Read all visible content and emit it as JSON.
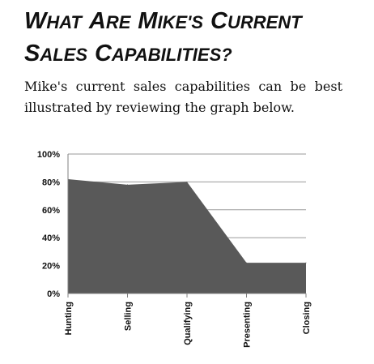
{
  "heading": {
    "line1": "What Are Mike's Current",
    "line2": "Sales Capabilities?"
  },
  "intro": "Mike's current sales capabilities can be best illustrated by reviewing the graph below.",
  "chart_data": {
    "type": "area",
    "categories": [
      "Hunting",
      "Selling",
      "Qualifying",
      "Presenting",
      "Closing"
    ],
    "values": [
      82,
      78,
      80,
      22,
      22
    ],
    "y_ticks": [
      "0%",
      "20%",
      "40%",
      "60%",
      "80%",
      "100%"
    ],
    "ylim": [
      0,
      100
    ],
    "grid": true,
    "fill_color": "#595959",
    "grid_color": "#9a9a9a"
  }
}
